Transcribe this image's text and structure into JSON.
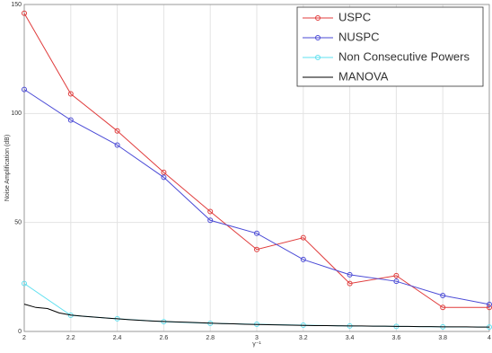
{
  "chart_data": {
    "type": "line",
    "xlabel": "γ⁻¹",
    "ylabel": "Noise Amplification (dB)",
    "x": [
      2,
      2.2,
      2.4,
      2.6,
      2.8,
      3,
      3.2,
      3.4,
      3.6,
      3.8,
      4
    ],
    "series": [
      {
        "name": "USPC",
        "color": "#e03c3c",
        "marker": "circle",
        "values": [
          146,
          109,
          92,
          73,
          55,
          37.6,
          43,
          22,
          25.6,
          11,
          11
        ]
      },
      {
        "name": "NUSPC",
        "color": "#4a4ad6",
        "marker": "circle",
        "values": [
          111,
          97,
          85.5,
          70.7,
          51,
          45,
          33,
          26,
          23,
          16.5,
          12.4
        ]
      },
      {
        "name": "Non Consecutive Powers",
        "color": "#5fe0f0",
        "marker": "circle",
        "values": [
          22,
          7.4,
          5.8,
          4.5,
          3.7,
          3.3,
          2.9,
          2.5,
          2.3,
          2.1,
          2.0
        ]
      },
      {
        "name": "MANOVA",
        "color": "#000000",
        "marker": "none",
        "x": [
          2,
          2.05,
          2.1,
          2.15,
          2.2,
          2.25,
          2.3,
          2.35,
          2.4,
          2.45,
          2.5,
          2.55,
          2.6,
          2.65,
          2.7,
          2.75,
          2.8,
          2.85,
          2.9,
          2.95,
          3,
          3.05,
          3.1,
          3.15,
          3.2,
          3.25,
          3.3,
          3.35,
          3.4,
          3.45,
          3.5,
          3.55,
          3.6,
          3.65,
          3.7,
          3.75,
          3.8,
          3.85,
          3.9,
          3.95,
          4
        ],
        "values": [
          12.5,
          11,
          10.5,
          8.5,
          7.5,
          7,
          6.6,
          6.2,
          5.8,
          5.4,
          5.1,
          4.8,
          4.6,
          4.4,
          4.2,
          4,
          3.8,
          3.6,
          3.5,
          3.3,
          3.2,
          3.1,
          3,
          2.9,
          2.8,
          2.7,
          2.7,
          2.6,
          2.5,
          2.5,
          2.4,
          2.4,
          2.3,
          2.3,
          2.2,
          2.2,
          2.1,
          2.1,
          2.1,
          2,
          2
        ]
      }
    ],
    "xlim": [
      2,
      4
    ],
    "xticks": [
      2,
      2.2,
      2.4,
      2.6,
      2.8,
      3,
      3.2,
      3.4,
      3.6,
      3.8,
      4
    ],
    "ylim": [
      0,
      150
    ],
    "yticks": [
      0,
      50,
      100,
      150
    ],
    "grid": true,
    "legend": "northeast"
  }
}
